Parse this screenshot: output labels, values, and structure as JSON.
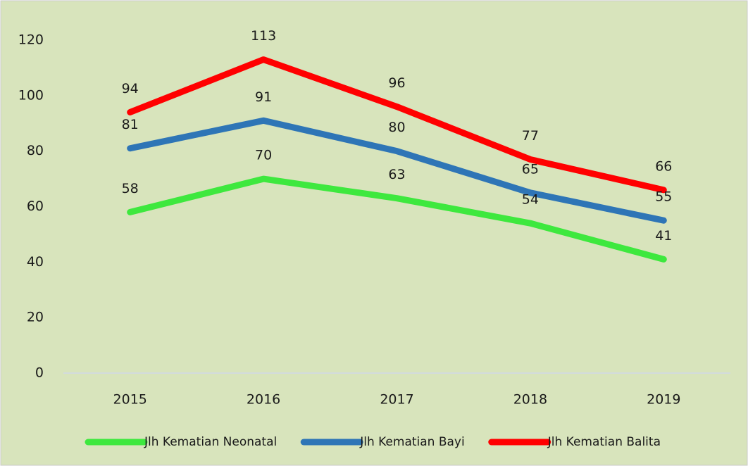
{
  "chart_data": {
    "type": "line",
    "categories": [
      "2015",
      "2016",
      "2017",
      "2018",
      "2019"
    ],
    "series": [
      {
        "name": "Jlh Kematian Neonatal",
        "color": "#3ee83e",
        "values": [
          58,
          70,
          63,
          54,
          41
        ]
      },
      {
        "name": "Jlh Kematian Bayi",
        "color": "#2e75b6",
        "values": [
          81,
          91,
          80,
          65,
          55
        ]
      },
      {
        "name": "Jlh Kematian Balita",
        "color": "#ff0000",
        "values": [
          94,
          113,
          96,
          77,
          66
        ]
      }
    ],
    "ylim": [
      0,
      120
    ],
    "yticks": [
      0,
      20,
      40,
      60,
      80,
      100,
      120
    ],
    "grid": false,
    "legend": "bottom"
  }
}
